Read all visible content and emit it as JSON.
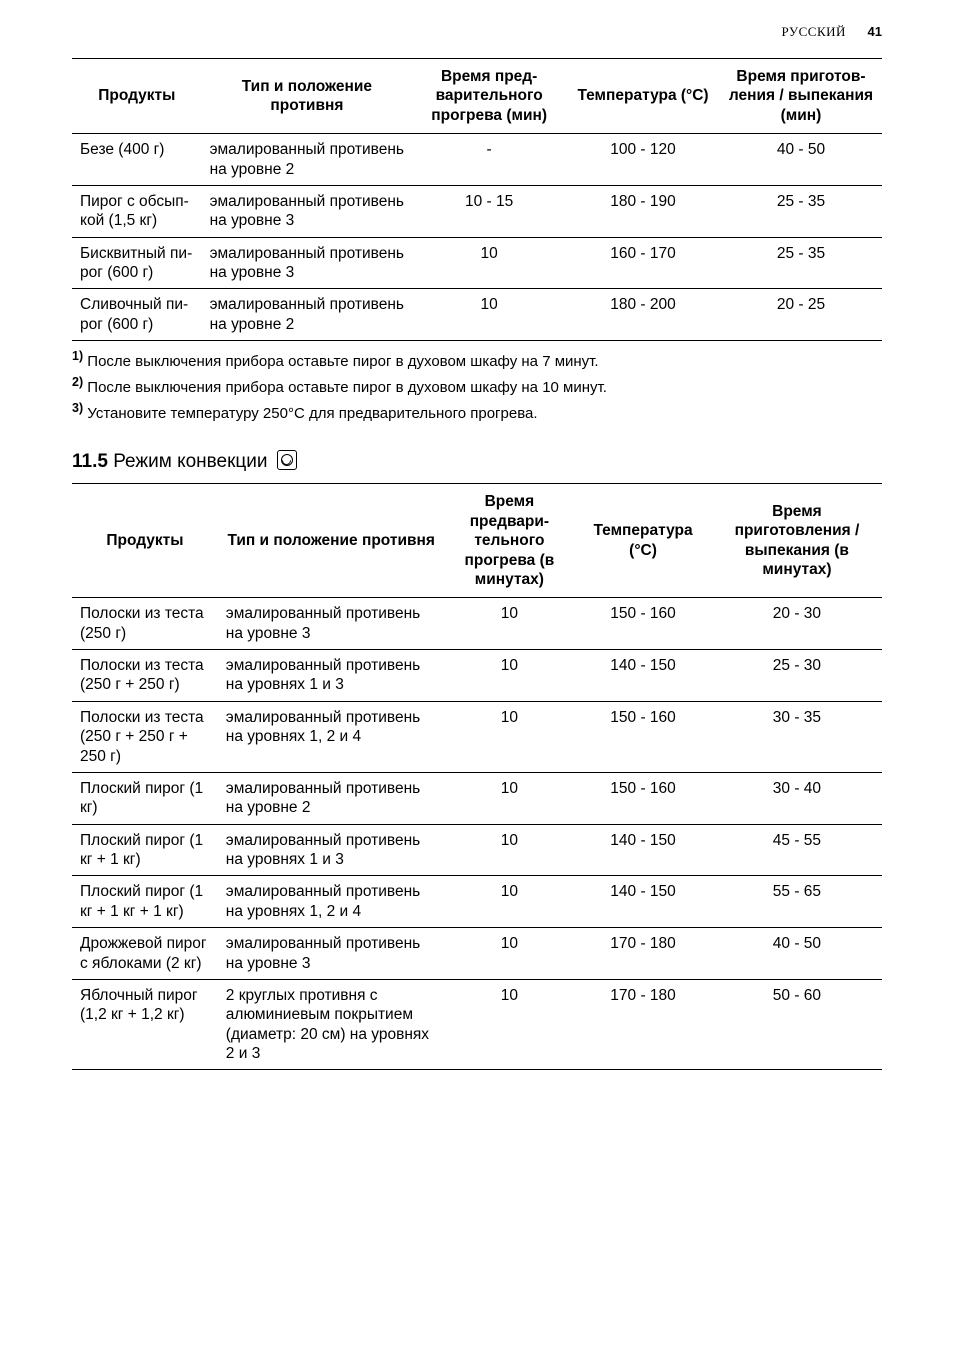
{
  "page_header": {
    "language": "РУССКИЙ",
    "page_number": "41"
  },
  "table1": {
    "columns": [
      "Продукты",
      "Тип и положение противня",
      "Время пред­варительного прогрева (мин)",
      "Температура (°C)",
      "Время приготов­ления / выпе­кания (мин)"
    ],
    "col_widths_pct": [
      16,
      26,
      19,
      19,
      20
    ],
    "rows": [
      {
        "product": "Безе (400 г)",
        "tray": "эмалированный про­тивень на уровне 2",
        "preheat": "-",
        "temp": "100 - 120",
        "time": "40 - 50"
      },
      {
        "product": "Пирог с обсып­кой (1,5 кг)",
        "tray": "эмалированный про­тивень на уровне 3",
        "preheat": "10 - 15",
        "temp": "180 - 190",
        "time": "25 - 35"
      },
      {
        "product": "Бисквитный пи­рог (600 г)",
        "tray": "эмалированный про­тивень на уровне 3",
        "preheat": "10",
        "temp": "160 - 170",
        "time": "25 - 35"
      },
      {
        "product": "Сливочный пи­рог (600 г)",
        "tray": "эмалированный про­тивень на уровне 2",
        "preheat": "10",
        "temp": "180 - 200",
        "time": "20 - 25"
      }
    ]
  },
  "footnotes": [
    {
      "n": "1)",
      "text": " После выключения прибора оставьте пирог в духовом шкафу на 7 минут."
    },
    {
      "n": "2)",
      "text": " После выключения прибора оставьте пирог в духовом шкафу на 10 минут."
    },
    {
      "n": "3)",
      "text": " Установите температуру 250°C для предварительного прогрева."
    }
  ],
  "section": {
    "number": "11.5",
    "title": " Режим конвекции "
  },
  "table2": {
    "columns": [
      "Продукты",
      "Тип и положение про­тивня",
      "Время предвари­тельного прогрева (в минутах)",
      "Температура (°C)",
      "Время приготовления / выпекания (в минутах)"
    ],
    "col_widths_pct": [
      18,
      28,
      16,
      17,
      21
    ],
    "rows": [
      {
        "product": "Полоски из тес­та (250 г)",
        "tray": "эмалированный проти­вень на уровне 3",
        "preheat": "10",
        "temp": "150 - 160",
        "time": "20 - 30"
      },
      {
        "product": "Полоски из тес­та (250 г + 250 г)",
        "tray": "эмалированный проти­вень на уровнях 1 и 3",
        "preheat": "10",
        "temp": "140 - 150",
        "time": "25 - 30"
      },
      {
        "product": "Полоски из тес­та (250 г + 250 г + 250 г)",
        "tray": "эмалированный проти­вень на уровнях 1, 2 и 4",
        "preheat": "10",
        "temp": "150 - 160",
        "time": "30 - 35"
      },
      {
        "product": "Плоский пирог (1 кг)",
        "tray": "эмалированный проти­вень на уровне 2",
        "preheat": "10",
        "temp": "150 - 160",
        "time": "30 - 40"
      },
      {
        "product": "Плоский пирог (1 кг + 1 кг)",
        "tray": "эмалированный проти­вень на уровнях 1 и 3",
        "preheat": "10",
        "temp": "140 - 150",
        "time": "45 - 55"
      },
      {
        "product": "Плоский пирог (1 кг + 1 кг + 1 кг)",
        "tray": "эмалированный проти­вень на уровнях 1, 2 и 4",
        "preheat": "10",
        "temp": "140 - 150",
        "time": "55 - 65"
      },
      {
        "product": "Дрожжевой пи­рог с яблоками (2 кг)",
        "tray": "эмалированный проти­вень на уровне 3",
        "preheat": "10",
        "temp": "170 - 180",
        "time": "40 - 50"
      },
      {
        "product": "Яблочный пи­рог (1,2 кг + 1,2 кг)",
        "tray": "2 круглых противня с алюминиевым покры­тием (диаметр: 20 см) на уровнях 2 и 3",
        "preheat": "10",
        "temp": "170 - 180",
        "time": "50 - 60"
      }
    ]
  }
}
